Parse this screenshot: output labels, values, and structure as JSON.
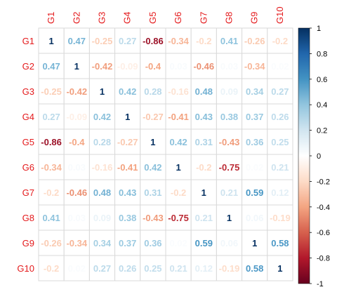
{
  "chart_data": {
    "type": "heatmap",
    "variables": [
      "G1",
      "G2",
      "G3",
      "G4",
      "G5",
      "G6",
      "G7",
      "G8",
      "G9",
      "G10"
    ],
    "matrix": [
      [
        1,
        0.47,
        -0.25,
        0.27,
        -0.86,
        -0.34,
        -0.2,
        0.41,
        -0.26,
        -0.2
      ],
      [
        0.47,
        1,
        -0.42,
        -0.09,
        -0.4,
        0.03,
        -0.46,
        0.03,
        -0.34,
        0.02
      ],
      [
        -0.25,
        -0.42,
        1,
        0.42,
        0.28,
        -0.16,
        0.48,
        0.09,
        0.34,
        0.27
      ],
      [
        0.27,
        -0.09,
        0.42,
        1,
        -0.27,
        -0.41,
        0.43,
        0.38,
        0.37,
        0.26
      ],
      [
        -0.86,
        -0.4,
        0.28,
        -0.27,
        1,
        0.42,
        0.31,
        -0.43,
        0.36,
        0.25
      ],
      [
        -0.34,
        0.03,
        -0.16,
        -0.41,
        0.42,
        1,
        -0.2,
        -0.75,
        0.02,
        0.21
      ],
      [
        -0.2,
        -0.46,
        0.48,
        0.43,
        0.31,
        -0.2,
        1,
        0.21,
        0.59,
        0.12
      ],
      [
        0.41,
        0.03,
        0.09,
        0.38,
        -0.43,
        -0.75,
        0.21,
        1,
        0.06,
        -0.19
      ],
      [
        -0.26,
        -0.34,
        0.34,
        0.37,
        0.36,
        0.02,
        0.59,
        0.06,
        1,
        0.58
      ],
      [
        -0.2,
        0.02,
        0.27,
        0.26,
        0.25,
        0.21,
        0.12,
        -0.19,
        0.58,
        1
      ]
    ],
    "colorbar": {
      "range": [
        -1,
        1
      ],
      "ticks": [
        "1",
        "0.8",
        "0.6",
        "0.4",
        "0.2",
        "0",
        "-0.2",
        "-0.4",
        "-0.6",
        "-0.8",
        "-1"
      ],
      "tick_values": [
        1,
        0.8,
        0.6,
        0.4,
        0.2,
        0,
        -0.2,
        -0.4,
        -0.6,
        -0.8,
        -1
      ]
    },
    "colors": {
      "negative_end": "#67001f",
      "positive_end": "#053061",
      "label_color": "#e41a1c",
      "grid": "#d9d9d9"
    },
    "title": "",
    "xlabel": "",
    "ylabel": ""
  }
}
